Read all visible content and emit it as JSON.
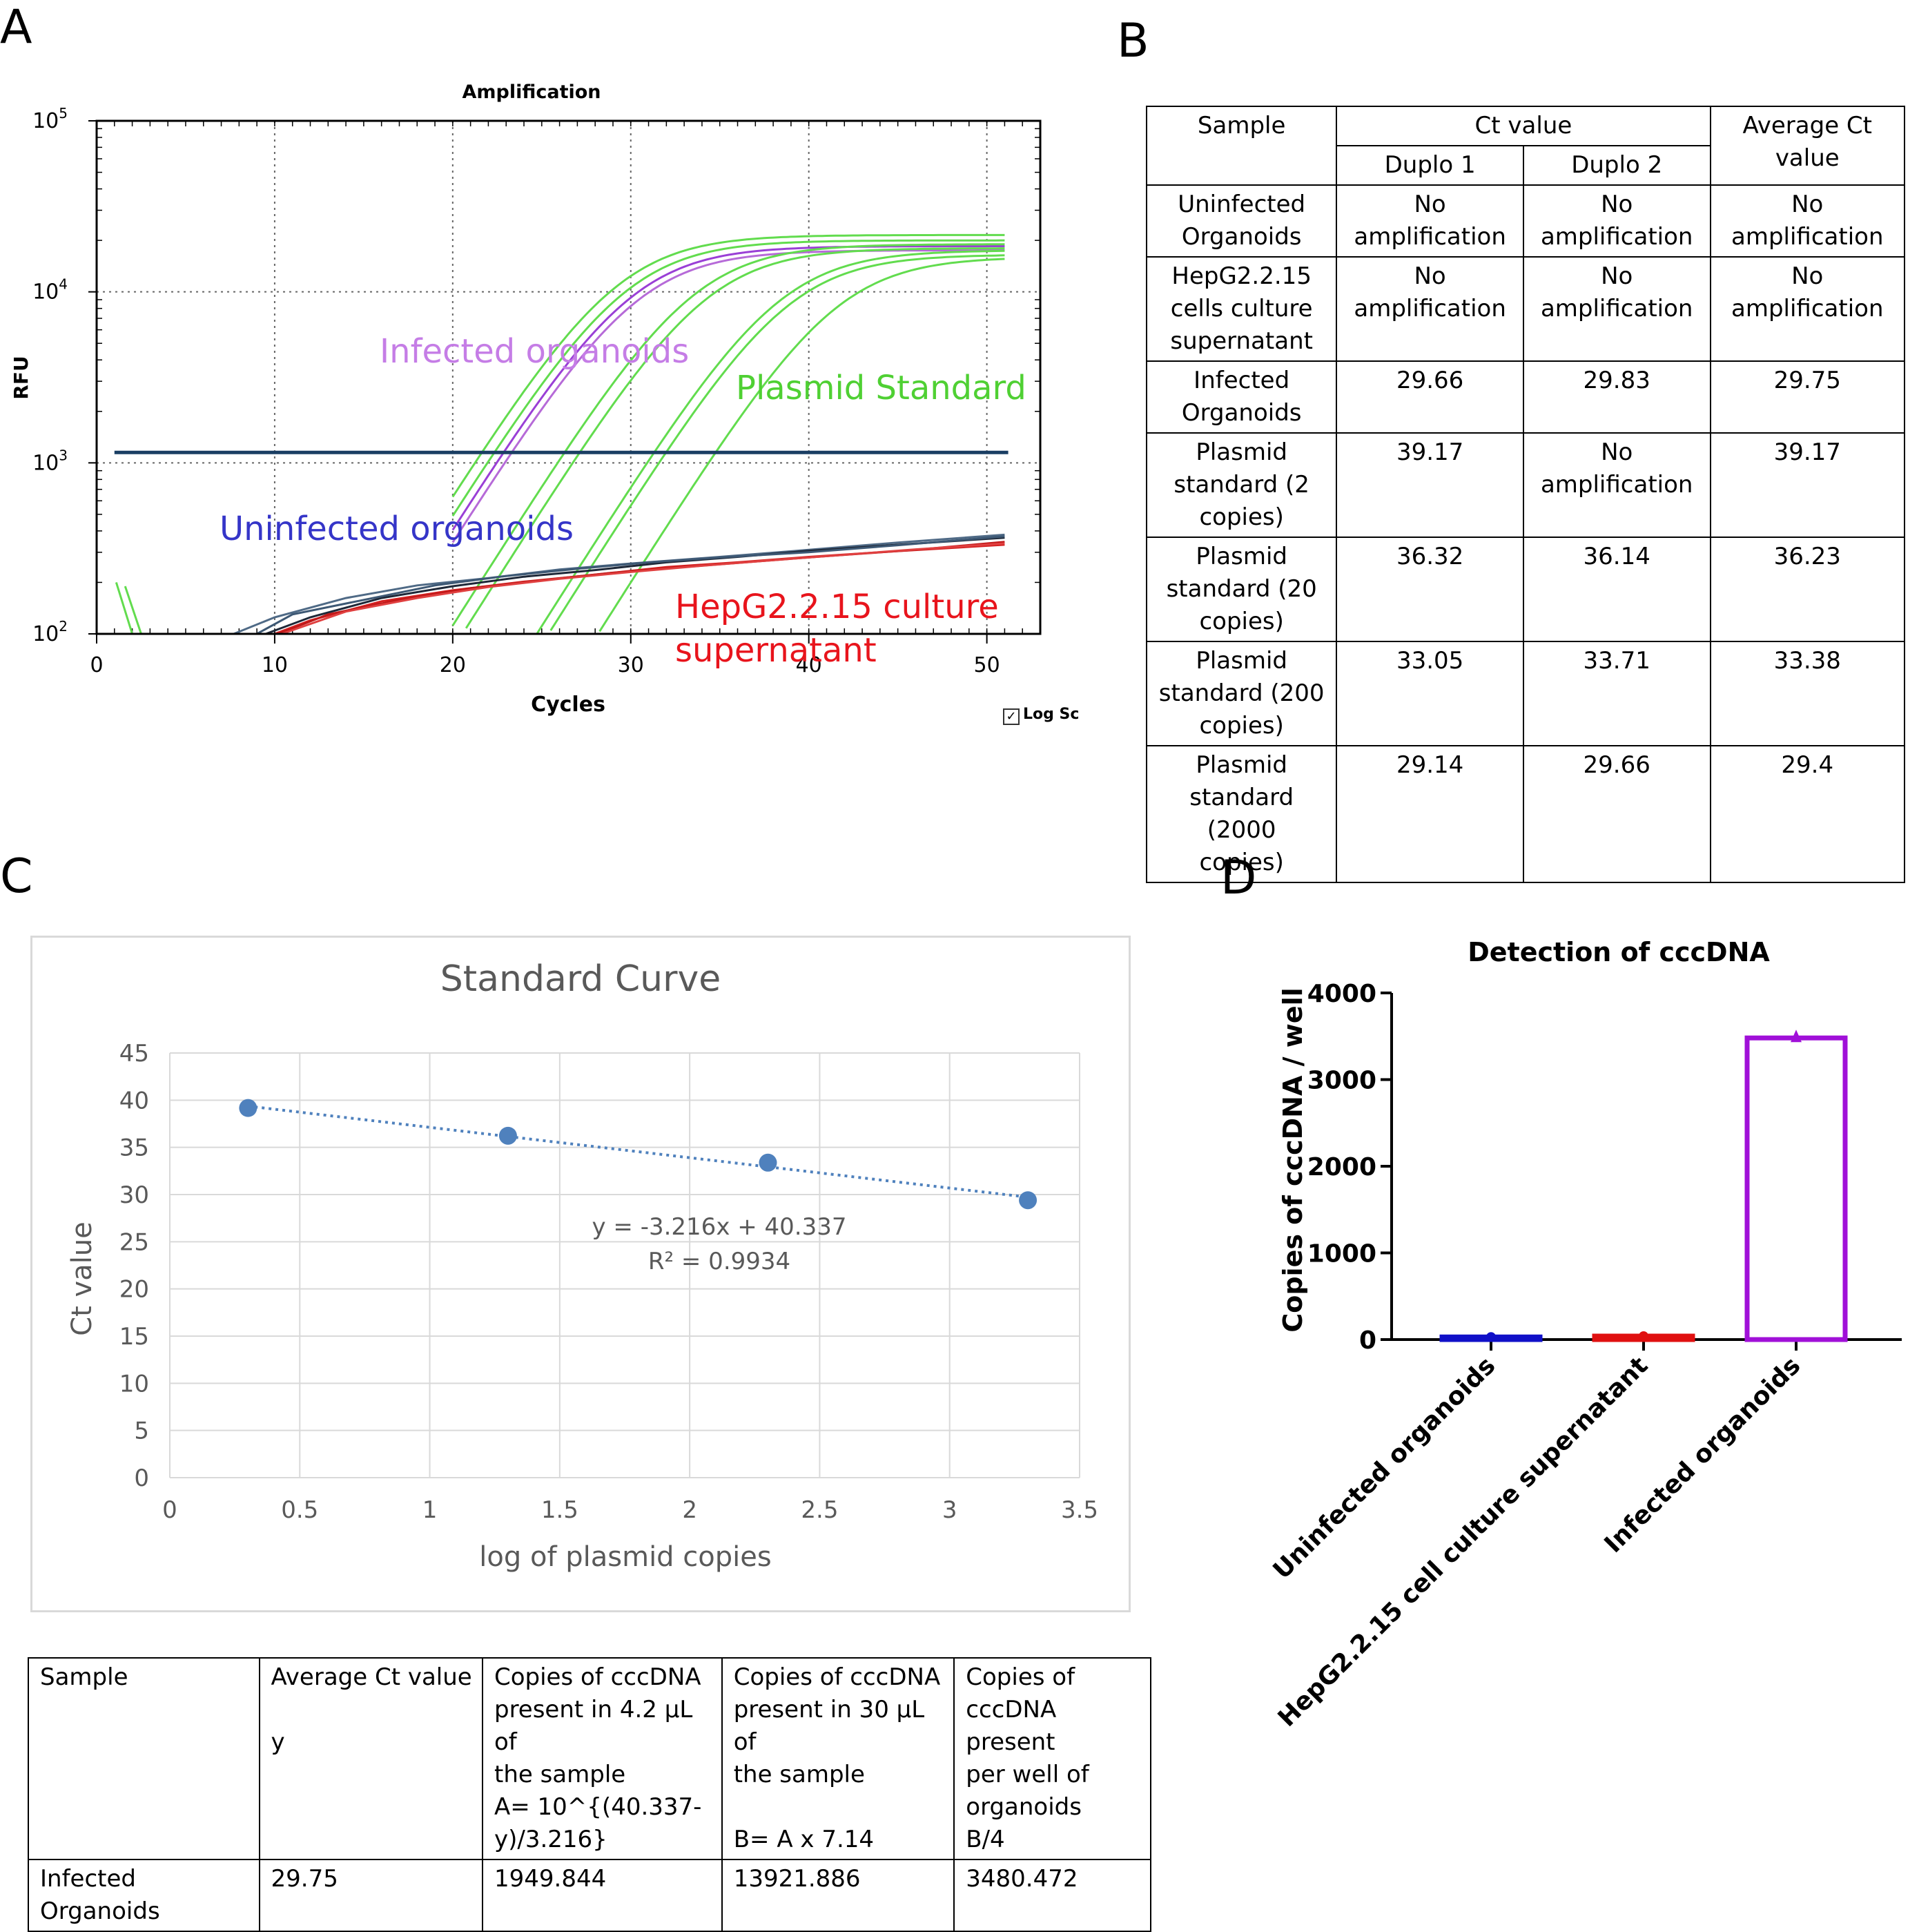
{
  "panels": {
    "a": "A",
    "b": "B",
    "c": "C",
    "d": "D"
  },
  "chart_data": [
    {
      "panel": "A",
      "type": "line",
      "title": "Amplification",
      "xlabel": "Cycles",
      "ylabel": "RFU",
      "xlim": [
        0,
        53
      ],
      "ylim": [
        100,
        100000
      ],
      "yscale": "log",
      "x_ticks": [
        0,
        10,
        20,
        30,
        40,
        50
      ],
      "y_ticks": [
        {
          "base": "10",
          "exp": "2",
          "value": 100
        },
        {
          "base": "10",
          "exp": "3",
          "value": 1000
        },
        {
          "base": "10",
          "exp": "4",
          "value": 10000
        },
        {
          "base": "10",
          "exp": "5",
          "value": 100000
        }
      ],
      "threshold": 1150,
      "log_scale_label": "Log Sc",
      "log_scale_checked": true,
      "grid": true,
      "annotations": [
        {
          "text": "Infected organoids",
          "color": "#c57de6"
        },
        {
          "text": "Plasmid Standard",
          "color": "#4fd033"
        },
        {
          "text": "Uninfected organoids",
          "color": "#3535c8"
        },
        {
          "text": "HepG2.2.15 culture supernatant",
          "color": "#e8141c"
        }
      ],
      "series": [
        {
          "group": "infected",
          "color": "#9a3fd6",
          "mid": 30.0,
          "k": 0.38,
          "plateau": 18500
        },
        {
          "group": "infected",
          "color": "#b66ad8",
          "mid": 30.3,
          "k": 0.38,
          "plateau": 17500
        },
        {
          "group": "plasmid",
          "color": "#62dc4e",
          "mid": 29.2,
          "k": 0.38,
          "plateau": 21500
        },
        {
          "group": "plasmid",
          "color": "#62dc4e",
          "mid": 29.7,
          "k": 0.38,
          "plateau": 20000
        },
        {
          "group": "plasmid",
          "color": "#62dc4e",
          "mid": 33.5,
          "k": 0.38,
          "plateau": 19000
        },
        {
          "group": "plasmid",
          "color": "#62dc4e",
          "mid": 34.2,
          "k": 0.38,
          "plateau": 18000
        },
        {
          "group": "plasmid",
          "color": "#62dc4e",
          "mid": 38.3,
          "k": 0.38,
          "plateau": 17500
        },
        {
          "group": "plasmid",
          "color": "#62dc4e",
          "mid": 38.8,
          "k": 0.38,
          "plateau": 16500
        },
        {
          "group": "plasmid",
          "color": "#62dc4e",
          "mid": 41.5,
          "k": 0.38,
          "plateau": 16000
        },
        {
          "group": "uninfected",
          "color": "#4f6a86",
          "x": [
            7.7,
            10,
            14,
            18,
            22,
            26,
            30,
            35,
            40,
            45,
            51
          ],
          "y": [
            100,
            125,
            162,
            192,
            212,
            238,
            258,
            282,
            310,
            342,
            380
          ]
        },
        {
          "group": "uninfected",
          "color": "#1e2838",
          "x": [
            9.5,
            12,
            16,
            20,
            24,
            28,
            32,
            36,
            40,
            45,
            51
          ],
          "y": [
            100,
            125,
            162,
            190,
            216,
            236,
            262,
            282,
            306,
            332,
            365
          ]
        },
        {
          "group": "uninfected",
          "color": "#3d5874",
          "x": [
            9.0,
            11,
            15,
            19,
            23,
            27,
            31,
            35,
            40,
            45,
            51
          ],
          "y": [
            100,
            130,
            158,
            192,
            218,
            240,
            262,
            280,
            300,
            330,
            372
          ]
        },
        {
          "group": "hepg2",
          "color": "#d42020",
          "x": [
            10.0,
            12,
            16,
            20,
            24,
            28,
            32,
            36,
            40,
            45,
            51
          ],
          "y": [
            100,
            120,
            155,
            180,
            202,
            222,
            246,
            262,
            282,
            305,
            332
          ]
        },
        {
          "group": "hepg2",
          "color": "#c01818",
          "x": [
            10.2,
            13,
            17,
            21,
            25,
            29,
            33,
            37,
            41,
            46,
            51
          ],
          "y": [
            100,
            130,
            158,
            185,
            206,
            228,
            246,
            265,
            285,
            310,
            345
          ]
        },
        {
          "group": "hepg2",
          "color": "#e04040",
          "x": [
            10.4,
            14,
            18,
            22,
            26,
            30,
            34,
            38,
            42,
            46,
            51
          ],
          "y": [
            100,
            135,
            162,
            188,
            210,
            230,
            250,
            270,
            290,
            312,
            338
          ]
        }
      ]
    },
    {
      "panel": "C",
      "type": "scatter",
      "title": "Standard Curve",
      "xlabel": "log of plasmid copies",
      "ylabel": "Ct value",
      "xlim": [
        0,
        3.5
      ],
      "ylim": [
        0,
        45
      ],
      "x_ticks": [
        "0",
        "0.5",
        "1",
        "1.5",
        "2",
        "2.5",
        "3",
        "3.5"
      ],
      "y_ticks": [
        "0",
        "5",
        "10",
        "15",
        "20",
        "25",
        "30",
        "35",
        "40",
        "45"
      ],
      "grid": true,
      "point_color": "#4f81bd",
      "points": [
        {
          "x": 0.301,
          "y": 39.17
        },
        {
          "x": 1.301,
          "y": 36.23
        },
        {
          "x": 2.301,
          "y": 33.38
        },
        {
          "x": 3.301,
          "y": 29.4
        }
      ],
      "trendline": {
        "slope": -3.216,
        "intercept": 40.337
      },
      "equation": "y = -3.216x + 40.337",
      "r2": "R² = 0.9934"
    },
    {
      "panel": "D",
      "type": "bar",
      "title": "Detection of cccDNA",
      "ylabel": "Copies of cccDNA / well",
      "ylim": [
        0,
        4000
      ],
      "y_ticks": [
        "0",
        "1000",
        "2000",
        "3000",
        "4000"
      ],
      "categories": [
        "Uninfected organoids",
        "HepG2.2.15 cell culture supernatant",
        "Infected organoids"
      ],
      "values": [
        30,
        40,
        3480.472
      ],
      "colors": [
        "#1010c8",
        "#e01010",
        "#a010d8"
      ]
    }
  ],
  "table_b": {
    "headers": {
      "sample": "Sample",
      "ct_value": "Ct value",
      "duplo1": "Duplo 1",
      "duplo2": "Duplo 2",
      "average": "Average Ct\nvalue"
    },
    "rows": [
      {
        "sample": "Uninfected\nOrganoids",
        "d1": "No\namplification",
        "d2": "No\namplification",
        "avg": "No\namplification"
      },
      {
        "sample": "HepG2.2.15\ncells culture\nsupernatant",
        "d1": "No\namplification",
        "d2": "No\namplification",
        "avg": "No\namplification"
      },
      {
        "sample": "Infected\nOrganoids",
        "d1": "29.66",
        "d2": "29.83",
        "avg": "29.75"
      },
      {
        "sample": "Plasmid\nstandard (2\ncopies)",
        "d1": "39.17",
        "d2": "No\namplification",
        "avg": "39.17"
      },
      {
        "sample": "Plasmid\nstandard (20\ncopies)",
        "d1": "36.32",
        "d2": "36.14",
        "avg": "36.23"
      },
      {
        "sample": "Plasmid\nstandard (200\ncopies)",
        "d1": "33.05",
        "d2": "33.71",
        "avg": "33.38"
      },
      {
        "sample": "Plasmid\nstandard (2000\ncopies)",
        "d1": "29.14",
        "d2": "29.66",
        "avg": "29.4"
      }
    ]
  },
  "table_c": {
    "headers": [
      "Sample",
      "Average Ct value\n\ny",
      "Copies of cccDNA\npresent in 4.2 μL of\nthe sample\nA= 10^{(40.337-\ny)/3.216}",
      "Copies of cccDNA\npresent in 30 μL of\nthe sample\n\nB= A x 7.14",
      "Copies of\ncccDNA present\nper well of\norganoids\nB/4"
    ],
    "row": [
      "Infected Organoids",
      "29.75",
      "1949.844",
      "13921.886",
      "3480.472"
    ]
  }
}
